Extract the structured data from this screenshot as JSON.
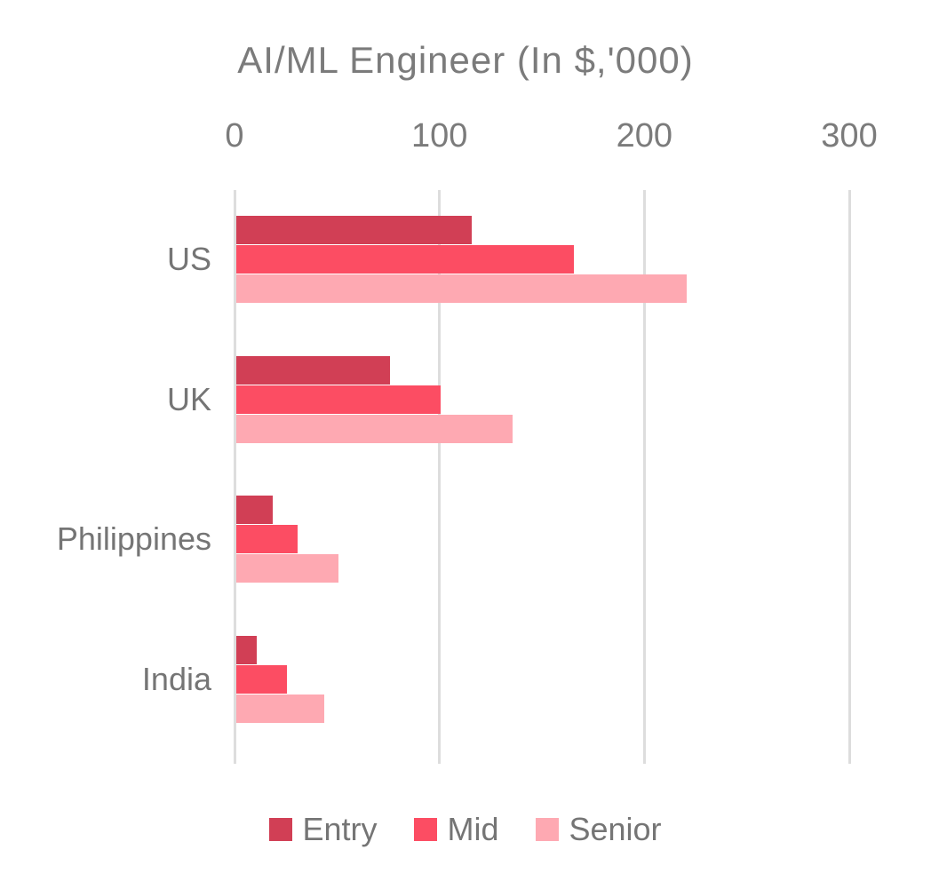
{
  "title": "AI/ML Engineer (In $,'000)",
  "colors": {
    "entry": "#D13F55",
    "mid": "#FC4D63",
    "senior": "#FEA9B2",
    "text": "#757575",
    "grid": "#DDDDDD",
    "background": "#FFFFFF"
  },
  "chart_data": {
    "type": "bar",
    "orientation": "horizontal",
    "title": "AI/ML Engineer (In $,'000)",
    "categories": [
      "US",
      "UK",
      "Philippines",
      "India"
    ],
    "series": [
      {
        "name": "Entry",
        "color": "#D13F55",
        "values": [
          115,
          75,
          18,
          10
        ]
      },
      {
        "name": "Mid",
        "color": "#FC4D63",
        "values": [
          165,
          100,
          30,
          25
        ]
      },
      {
        "name": "Senior",
        "color": "#FEA9B2",
        "values": [
          220,
          135,
          50,
          43
        ]
      }
    ],
    "xlabel": "",
    "ylabel": "",
    "xlim": [
      0,
      300
    ],
    "xticks": [
      0,
      100,
      200,
      300
    ],
    "grid": true,
    "legend_position": "bottom"
  }
}
